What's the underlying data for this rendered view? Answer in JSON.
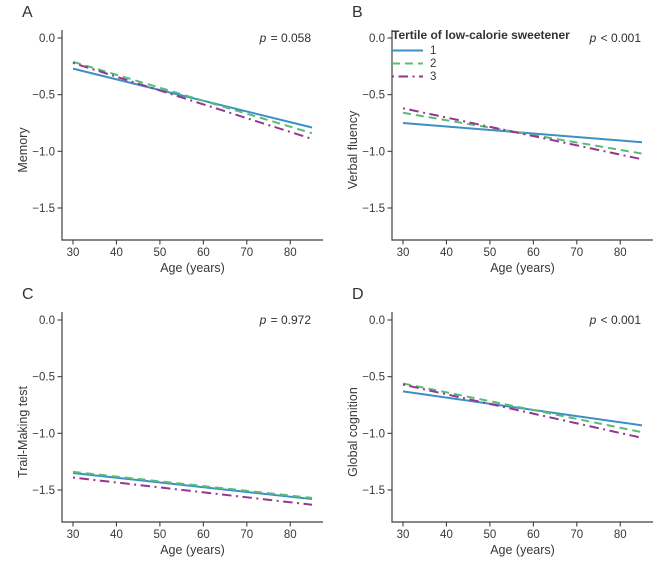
{
  "figure": {
    "background": "#ffffff",
    "text_color": "#383838",
    "axis_color": "#3f3f3f"
  },
  "legend": {
    "title": "Tertile of low-calorie sweetener",
    "items": [
      {
        "label": "1",
        "color": "#3e8ec6",
        "line_style": "solid"
      },
      {
        "label": "2",
        "color": "#56bd74",
        "line_style": "dashed"
      },
      {
        "label": "3",
        "color": "#96368e",
        "line_style": "dashdot"
      }
    ]
  },
  "chart_data": [
    {
      "panel_label": "A",
      "type": "line",
      "ylabel": "Memory",
      "xlabel": "Age (years)",
      "annotation": "p = 0.058",
      "x": [
        30,
        85
      ],
      "xticks": [
        30,
        40,
        50,
        60,
        70,
        80
      ],
      "yticks": [
        0,
        -0.5,
        -1,
        -1.5
      ],
      "ytick_labels": [
        "0.0",
        "−0.5",
        "−1.0",
        "−1.5"
      ],
      "xlim": [
        27.5,
        87.5
      ],
      "ylim": [
        -1.8,
        0.07
      ],
      "grid": false,
      "show_legend": false,
      "series": [
        {
          "name": "1",
          "y": [
            -0.27,
            -0.79
          ]
        },
        {
          "name": "2",
          "y": [
            -0.21,
            -0.84
          ]
        },
        {
          "name": "3",
          "y": [
            -0.22,
            -0.89
          ]
        }
      ]
    },
    {
      "panel_label": "B",
      "type": "line",
      "ylabel": "Verbal fluency",
      "xlabel": "Age (years)",
      "annotation": "p < 0.001",
      "x": [
        30,
        85
      ],
      "xticks": [
        30,
        40,
        50,
        60,
        70,
        80
      ],
      "yticks": [
        0,
        -0.5,
        -1,
        -1.5
      ],
      "ytick_labels": [
        "0.0",
        "−0.5",
        "−1.0",
        "−1.5"
      ],
      "xlim": [
        27.5,
        87.5
      ],
      "ylim": [
        -1.8,
        0.07
      ],
      "grid": false,
      "show_legend": true,
      "legend_position": "top-left",
      "series": [
        {
          "name": "1",
          "y": [
            -0.75,
            -0.92
          ]
        },
        {
          "name": "2",
          "y": [
            -0.66,
            -1.02
          ]
        },
        {
          "name": "3",
          "y": [
            -0.62,
            -1.07
          ]
        }
      ]
    },
    {
      "panel_label": "C",
      "type": "line",
      "ylabel": "Trail-Making test",
      "xlabel": "Age (years)",
      "annotation": "p = 0.972",
      "x": [
        30,
        85
      ],
      "xticks": [
        30,
        40,
        50,
        60,
        70,
        80
      ],
      "yticks": [
        0,
        -0.5,
        -1,
        -1.5
      ],
      "ytick_labels": [
        "0.0",
        "−0.5",
        "−1.0",
        "−1.5"
      ],
      "xlim": [
        27.5,
        87.5
      ],
      "ylim": [
        -1.8,
        0.07
      ],
      "grid": false,
      "show_legend": false,
      "series": [
        {
          "name": "1",
          "y": [
            -1.35,
            -1.58
          ]
        },
        {
          "name": "2",
          "y": [
            -1.34,
            -1.57
          ]
        },
        {
          "name": "3",
          "y": [
            -1.39,
            -1.63
          ]
        }
      ]
    },
    {
      "panel_label": "D",
      "type": "line",
      "ylabel": "Global cognition",
      "xlabel": "Age (years)",
      "annotation": "p < 0.001",
      "x": [
        30,
        85
      ],
      "xticks": [
        30,
        40,
        50,
        60,
        70,
        80
      ],
      "yticks": [
        0,
        -0.5,
        -1,
        -1.5
      ],
      "ytick_labels": [
        "0.0",
        "−0.5",
        "−1.0",
        "−1.5"
      ],
      "xlim": [
        27.5,
        87.5
      ],
      "ylim": [
        -1.8,
        0.07
      ],
      "grid": false,
      "show_legend": false,
      "series": [
        {
          "name": "1",
          "y": [
            -0.63,
            -0.93
          ]
        },
        {
          "name": "2",
          "y": [
            -0.56,
            -0.99
          ]
        },
        {
          "name": "3",
          "y": [
            -0.57,
            -1.04
          ]
        }
      ]
    }
  ]
}
